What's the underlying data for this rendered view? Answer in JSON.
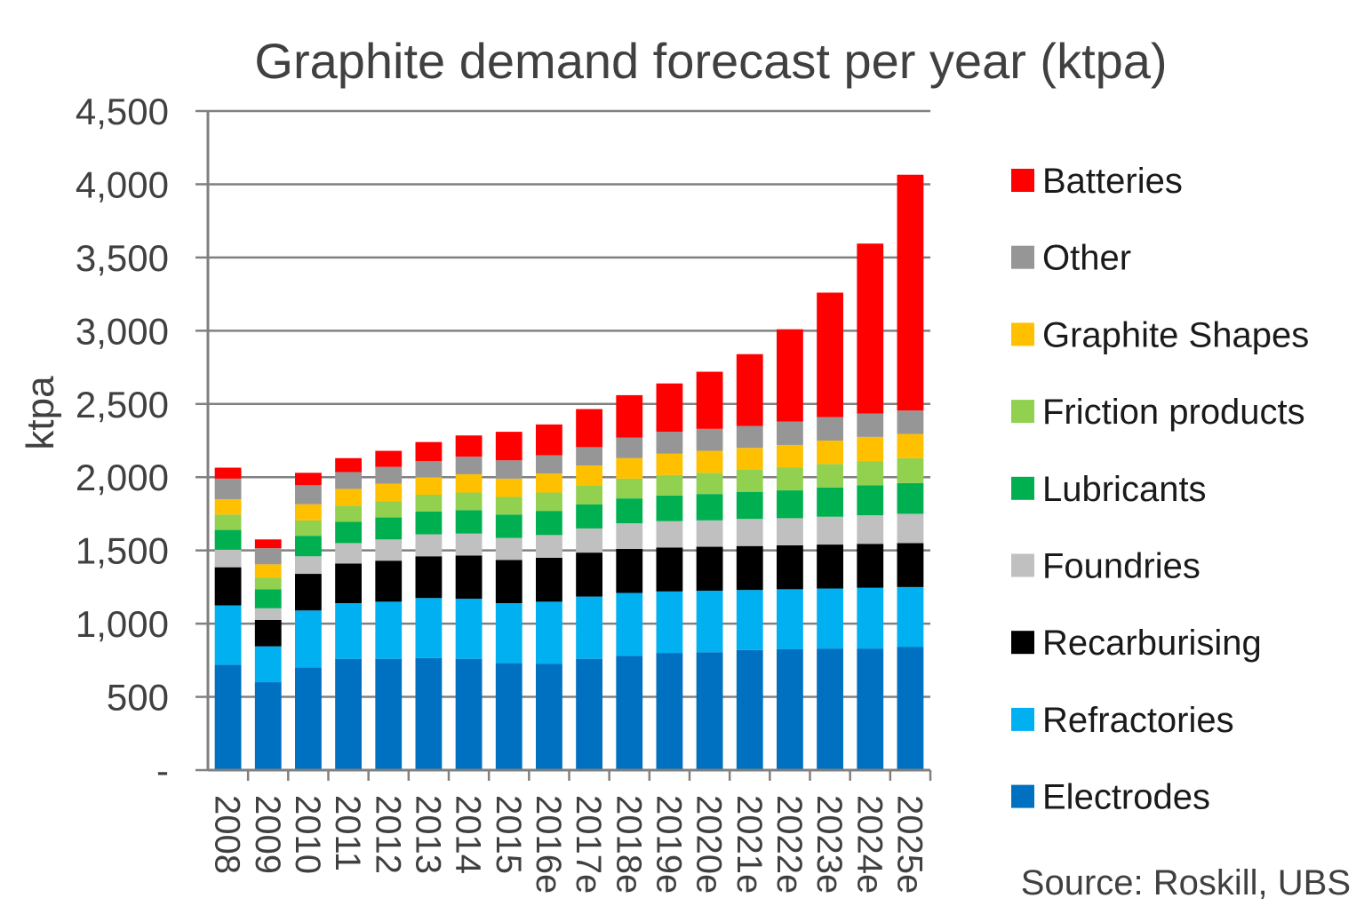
{
  "chart_data": {
    "type": "bar",
    "stacked": true,
    "title": "Graphite demand forecast per year (ktpa)",
    "xlabel": "",
    "ylabel": "ktpa",
    "ylim": [
      0,
      4500
    ],
    "yticks": [
      0,
      500,
      1000,
      1500,
      2000,
      2500,
      3000,
      3500,
      4000,
      4500
    ],
    "ytick_labels": [
      "-",
      "500",
      "1,000",
      "1,500",
      "2,000",
      "2,500",
      "3,000",
      "3,500",
      "4,000",
      "4,500"
    ],
    "categories": [
      "2008",
      "2009",
      "2010",
      "2011",
      "2012",
      "2013",
      "2014",
      "2015",
      "2016e",
      "2017e",
      "2018e",
      "2019e",
      "2020e",
      "2021e",
      "2022e",
      "2023e",
      "2024e",
      "2025e"
    ],
    "grid": true,
    "legend_position": "right",
    "source": "Source: Roskill, UBS",
    "series": [
      {
        "name": "Electrodes",
        "color": "#0070C0",
        "values": [
          720,
          600,
          700,
          760,
          760,
          765,
          760,
          730,
          725,
          760,
          780,
          800,
          805,
          820,
          825,
          830,
          830,
          840
        ]
      },
      {
        "name": "Refractories",
        "color": "#00B0F0",
        "values": [
          405,
          245,
          390,
          380,
          390,
          410,
          410,
          410,
          425,
          425,
          430,
          420,
          420,
          410,
          410,
          410,
          415,
          410
        ]
      },
      {
        "name": "Recarburising",
        "color": "#000000",
        "values": [
          260,
          180,
          250,
          270,
          280,
          285,
          295,
          295,
          300,
          300,
          300,
          300,
          300,
          300,
          300,
          300,
          300,
          300
        ]
      },
      {
        "name": "Foundries",
        "color": "#C0C0C0",
        "values": [
          120,
          80,
          120,
          140,
          145,
          150,
          150,
          150,
          155,
          165,
          175,
          180,
          180,
          185,
          185,
          190,
          195,
          200
        ]
      },
      {
        "name": "Lubricants",
        "color": "#00B050",
        "values": [
          135,
          130,
          140,
          145,
          150,
          155,
          160,
          160,
          165,
          165,
          170,
          175,
          180,
          185,
          190,
          200,
          205,
          210
        ]
      },
      {
        "name": "Friction products",
        "color": "#92D050",
        "values": [
          105,
          80,
          105,
          110,
          110,
          115,
          120,
          120,
          125,
          130,
          135,
          140,
          145,
          150,
          155,
          160,
          165,
          170
        ]
      },
      {
        "name": "Graphite Shapes",
        "color": "#FFC000",
        "values": [
          105,
          90,
          110,
          115,
          120,
          120,
          125,
          125,
          130,
          135,
          140,
          145,
          150,
          150,
          155,
          160,
          165,
          165
        ]
      },
      {
        "name": "Other",
        "color": "#969696",
        "values": [
          140,
          110,
          130,
          115,
          115,
          110,
          120,
          125,
          125,
          125,
          140,
          150,
          150,
          150,
          160,
          160,
          160,
          160
        ]
      },
      {
        "name": "Batteries",
        "color": "#FF0000",
        "values": [
          75,
          60,
          85,
          95,
          110,
          130,
          145,
          195,
          210,
          260,
          290,
          330,
          390,
          490,
          630,
          850,
          1160,
          1610
        ]
      }
    ]
  }
}
